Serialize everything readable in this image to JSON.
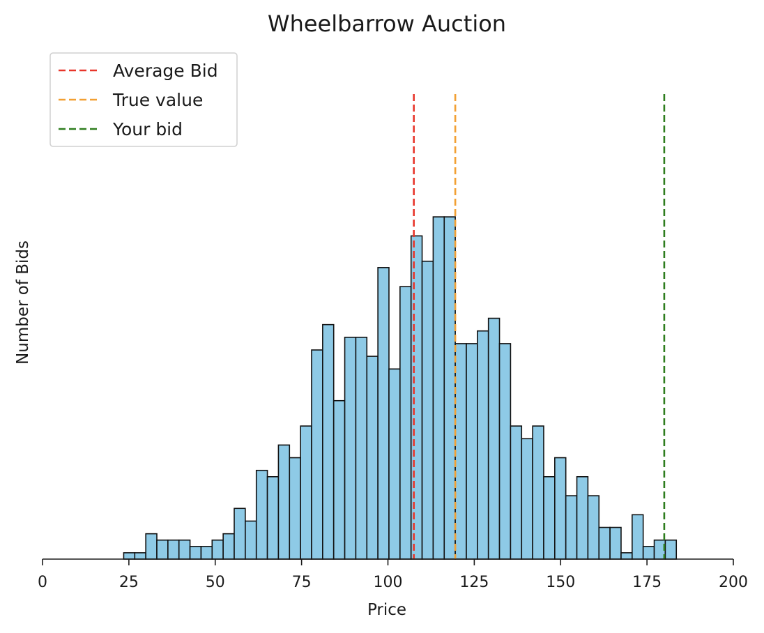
{
  "chart_data": {
    "type": "bar",
    "title": "Wheelbarrow Auction",
    "xlabel": "Price",
    "ylabel": "Number of Bids",
    "xlim": [
      0,
      200
    ],
    "ylim": [
      0,
      55
    ],
    "xticks": [
      "0",
      "25",
      "50",
      "75",
      "100",
      "125",
      "150",
      "175",
      "200"
    ],
    "yticks_shown": false,
    "grid": false,
    "legend_position": "top-left",
    "bar_color": "#8ecae6",
    "bar_edge_color": "#111111",
    "bins": {
      "start": 23.5,
      "width": 3.2,
      "counts": [
        1,
        1,
        4,
        3,
        3,
        3,
        2,
        2,
        3,
        4,
        8,
        6,
        14,
        13,
        18,
        16,
        21,
        33,
        37,
        25,
        35,
        35,
        32,
        46,
        30,
        43,
        51,
        47,
        54,
        54,
        34,
        34,
        36,
        38,
        34,
        21,
        19,
        21,
        13,
        16,
        10,
        13,
        10,
        5,
        5,
        1,
        7,
        2,
        3,
        3
      ]
    },
    "lines": [
      {
        "name": "Average Bid",
        "x": 107.5,
        "color": "#e8362b"
      },
      {
        "name": "True value",
        "x": 119.5,
        "color": "#f2a033"
      },
      {
        "name": "Your bid",
        "x": 180,
        "color": "#2e7d1e"
      }
    ]
  }
}
